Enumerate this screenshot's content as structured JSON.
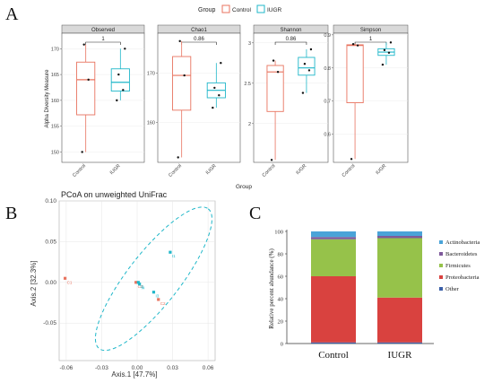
{
  "panel_letters": {
    "a": "A",
    "b": "B",
    "c": "C"
  },
  "chart_data": [
    {
      "type": "box",
      "legend": {
        "title": "Group",
        "items": [
          {
            "label": "Control",
            "color": "#e8735f"
          },
          {
            "label": "IUGR",
            "color": "#1fb7c9"
          }
        ],
        "placement": "top"
      },
      "ylabel": "Alpha Diversity Measure",
      "xlabel": "Group",
      "categories": [
        "Control",
        "IUGR"
      ],
      "facets": [
        {
          "title": "Observed",
          "p_label": "1",
          "ylim": [
            148,
            173
          ],
          "yticks": [
            150,
            155,
            160,
            165,
            170
          ],
          "boxes": [
            {
              "group": "Control",
              "min": 150,
              "q1": 157.2,
              "median": 164,
              "q3": 167.4,
              "max": 170.8,
              "points": [
                150,
                164,
                170.8
              ]
            },
            {
              "group": "IUGR",
              "min": 160,
              "q1": 161.8,
              "median": 163.5,
              "q3": 166.1,
              "max": 170,
              "points": [
                160,
                162,
                165,
                170
              ]
            }
          ]
        },
        {
          "title": "Chao1",
          "p_label": "0.86",
          "ylim": [
            152,
            178
          ],
          "yticks": [
            160,
            170
          ],
          "boxes": [
            {
              "group": "Control",
              "min": 153,
              "q1": 162.5,
              "median": 169.5,
              "q3": 173.3,
              "max": 176.4,
              "points": [
                153,
                169.5,
                176.4
              ]
            },
            {
              "group": "IUGR",
              "min": 163,
              "q1": 165,
              "median": 166.5,
              "q3": 168,
              "max": 172,
              "points": [
                163,
                165.5,
                167,
                172
              ]
            }
          ]
        },
        {
          "title": "Shannon",
          "p_label": "0.86",
          "ylim": [
            1.52,
            3.12
          ],
          "yticks": [
            2.0,
            2.5,
            3.0
          ],
          "boxes": [
            {
              "group": "Control",
              "min": 1.55,
              "q1": 2.15,
              "median": 2.64,
              "q3": 2.72,
              "max": 2.78,
              "points": [
                1.55,
                2.64,
                2.78
              ]
            },
            {
              "group": "IUGR",
              "min": 2.38,
              "q1": 2.6,
              "median": 2.69,
              "q3": 2.82,
              "max": 2.92,
              "points": [
                2.38,
                2.66,
                2.74,
                2.92
              ]
            }
          ]
        },
        {
          "title": "Simpson",
          "p_label": "1",
          "ylim": [
            0.515,
            0.905
          ],
          "yticks": [
            0.6,
            0.7,
            0.8,
            0.9
          ],
          "boxes": [
            {
              "group": "Control",
              "min": 0.525,
              "q1": 0.695,
              "median": 0.868,
              "q3": 0.87,
              "max": 0.872,
              "points": [
                0.525,
                0.868,
                0.872
              ]
            },
            {
              "group": "IUGR",
              "min": 0.81,
              "q1": 0.838,
              "median": 0.848,
              "q3": 0.858,
              "max": 0.877,
              "points": [
                0.81,
                0.846,
                0.854,
                0.877
              ]
            }
          ]
        }
      ]
    },
    {
      "type": "scatter",
      "title": "PCoA on unweighted UniFrac",
      "xlabel": "Axis.1  [47.7%]",
      "ylabel": "Axis.2  [32.3%]",
      "xlim": [
        -0.066,
        0.066
      ],
      "ylim": [
        -0.096,
        0.1
      ],
      "xticks": [
        -0.06,
        -0.03,
        0.0,
        0.03,
        0.06
      ],
      "yticks": [
        -0.05,
        0.0,
        0.05,
        0.1
      ],
      "grid": true,
      "points": [
        {
          "x": -0.061,
          "y": 0.005,
          "color": "#e8735f",
          "label": "C1"
        },
        {
          "x": -0.001,
          "y": 0.0,
          "color": "#e8735f",
          "label": "C3"
        },
        {
          "x": 0.018,
          "y": -0.021,
          "color": "#e8735f",
          "label": "C2"
        },
        {
          "x": 0.001,
          "y": 0.0,
          "color": "#1fb7c9",
          "label": "I2"
        },
        {
          "x": 0.002,
          "y": -0.002,
          "color": "#1fb7c9",
          "label": "I4"
        },
        {
          "x": 0.014,
          "y": -0.012,
          "color": "#1fb7c9",
          "label": "I3"
        },
        {
          "x": 0.028,
          "y": 0.037,
          "color": "#1fb7c9",
          "label": "I1"
        }
      ],
      "ellipse": {
        "cx": 0.014,
        "cy": 0.0045,
        "rx": 0.075,
        "ry": 0.022,
        "angle_deg": -52,
        "color": "#1fb7c9",
        "dash": true
      }
    },
    {
      "type": "stacked_bar",
      "ylabel": "Relative  percent  abundance  (%)",
      "categories": [
        "Control",
        "IUGR"
      ],
      "ylim": [
        0,
        100
      ],
      "yticks": [
        0,
        20,
        40,
        60,
        80,
        100
      ],
      "series": [
        {
          "name": "Other",
          "color": "#3b5fa8",
          "values": [
            1,
            1
          ]
        },
        {
          "name": "Proteobacteria",
          "color": "#d9423f",
          "values": [
            59,
            40
          ]
        },
        {
          "name": "Firmicutes",
          "color": "#96c24a",
          "values": [
            33,
            53
          ]
        },
        {
          "name": "Bacteroidetes",
          "color": "#7e5a9b",
          "values": [
            2,
            2
          ]
        },
        {
          "name": "Actinobacteria",
          "color": "#4aa3d8",
          "values": [
            5,
            4
          ]
        }
      ],
      "legend_order": [
        "Actinobacteria",
        "Bacteroidetes",
        "Firmicutes",
        "Proteobacteria",
        "Other"
      ],
      "legend_placement": "right"
    }
  ]
}
